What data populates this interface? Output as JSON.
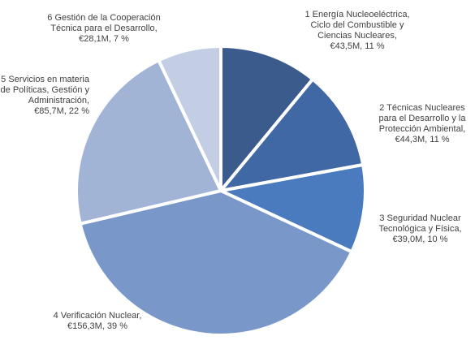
{
  "chart_data": {
    "type": "pie",
    "categories": [
      "1 Energía Nucleoeléctrica, Ciclo del Combustible y Ciencias Nucleares,",
      "2 Técnicas Nucleares para el Desarrollo y la Protección Ambiental,",
      "3 Seguridad Nuclear Tecnológica y Física,",
      "4 Verificación Nuclear,",
      "5 Servicios en materia de Políticas, Gestión y Administración,",
      "6 Gestión de la Cooperación Técnica para el Desarrollo,"
    ],
    "values": [
      43.5,
      44.3,
      39.0,
      156.3,
      85.7,
      28.1
    ],
    "value_labels": [
      "€43,5M,",
      "€44,3M,",
      "€39,0M,",
      "€156,3M,",
      "€85,7M,",
      "€28,1M,"
    ],
    "percents": [
      11,
      11,
      10,
      39,
      22,
      7
    ],
    "percent_labels": [
      "11 %",
      "11 %",
      "10 %",
      "39 %",
      "22 %",
      "7 %"
    ],
    "colors": [
      "#3b5b8d",
      "#4068a4",
      "#4a7bbf",
      "#7997c9",
      "#a2b4d6",
      "#c3cde3"
    ]
  }
}
